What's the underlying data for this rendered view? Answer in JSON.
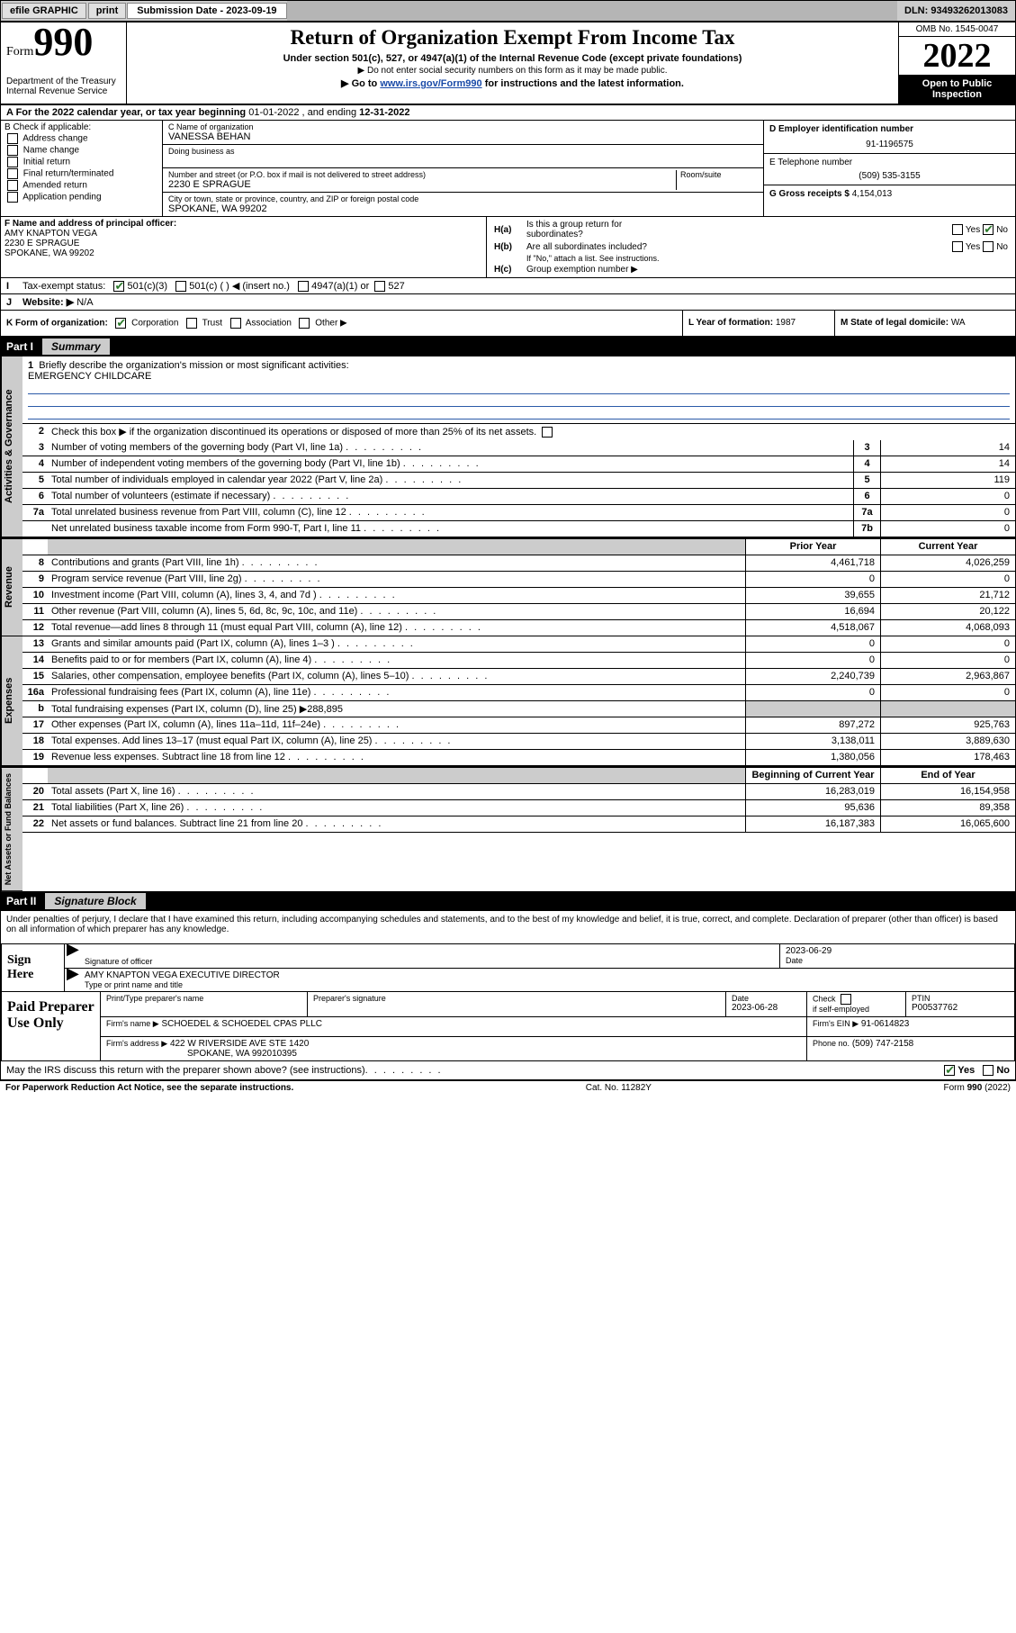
{
  "topbar": {
    "efile": "efile GRAPHIC",
    "print": "print",
    "submission_prefix": "Submission Date - ",
    "submission_date": "2023-09-19",
    "dln_prefix": "DLN: ",
    "dln": "93493262013083"
  },
  "header": {
    "form_word": "Form",
    "form_number": "990",
    "dept": "Department of the Treasury",
    "irs": "Internal Revenue Service",
    "title": "Return of Organization Exempt From Income Tax",
    "subtitle": "Under section 501(c), 527, or 4947(a)(1) of the Internal Revenue Code (except private foundations)",
    "note1": "▶ Do not enter social security numbers on this form as it may be made public.",
    "note2_prefix": "▶ Go to ",
    "note2_link": "www.irs.gov/Form990",
    "note2_suffix": " for instructions and the latest information.",
    "omb": "OMB No. 1545-0047",
    "year": "2022",
    "inspection1": "Open to Public",
    "inspection2": "Inspection"
  },
  "A": {
    "prefix": "A For the 2022 calendar year, or tax year beginning ",
    "begin": "01-01-2022",
    "mid": " , and ending ",
    "end": "12-31-2022"
  },
  "B": {
    "label": "B Check if applicable:",
    "opts": [
      "Address change",
      "Name change",
      "Initial return",
      "Final return/terminated",
      "Amended return",
      "Application pending"
    ]
  },
  "C": {
    "name_label": "C Name of organization",
    "name": "VANESSA BEHAN",
    "dba_label": "Doing business as",
    "dba": "",
    "addr_label": "Number and street (or P.O. box if mail is not delivered to street address)",
    "room_label": "Room/suite",
    "addr": "2230 E SPRAGUE",
    "city_label": "City or town, state or province, country, and ZIP or foreign postal code",
    "city": "SPOKANE, WA  99202"
  },
  "D": {
    "label": "D Employer identification number",
    "val": "91-1196575"
  },
  "E": {
    "label": "E Telephone number",
    "val": "(509) 535-3155"
  },
  "G": {
    "label": "G Gross receipts $",
    "val": "4,154,013"
  },
  "F": {
    "label": "F Name and address of principal officer:",
    "name": "AMY KNAPTON VEGA",
    "addr1": "2230 E SPRAGUE",
    "addr2": "SPOKANE, WA  99202"
  },
  "H": {
    "a": "Is this a group return for",
    "a2": "subordinates?",
    "b": "Are all subordinates included?",
    "note": "If \"No,\" attach a list. See instructions.",
    "c": "Group exemption number ▶",
    "yes": "Yes",
    "no": "No"
  },
  "I": {
    "label": "Tax-exempt status:",
    "o1": "501(c)(3)",
    "o2": "501(c) (   ) ◀ (insert no.)",
    "o3": "4947(a)(1) or",
    "o4": "527"
  },
  "J": {
    "label": "Website: ▶",
    "val": "N/A"
  },
  "K": {
    "label": "K Form of organization:",
    "o1": "Corporation",
    "o2": "Trust",
    "o3": "Association",
    "o4": "Other ▶"
  },
  "L": {
    "label": "L Year of formation:",
    "val": "1987"
  },
  "M": {
    "label": "M State of legal domicile:",
    "val": "WA"
  },
  "part1": {
    "label": "Part I",
    "title": "Summary"
  },
  "summary": {
    "q1": "Briefly describe the organization's mission or most significant activities:",
    "mission": "EMERGENCY CHILDCARE",
    "q2": "Check this box ▶        if the organization discontinued its operations or disposed of more than 25% of its net assets.",
    "rows_gov": [
      {
        "n": "3",
        "d": "Number of voting members of the governing body (Part VI, line 1a)",
        "box": "3",
        "v": "14"
      },
      {
        "n": "4",
        "d": "Number of independent voting members of the governing body (Part VI, line 1b)",
        "box": "4",
        "v": "14"
      },
      {
        "n": "5",
        "d": "Total number of individuals employed in calendar year 2022 (Part V, line 2a)",
        "box": "5",
        "v": "119"
      },
      {
        "n": "6",
        "d": "Total number of volunteers (estimate if necessary)",
        "box": "6",
        "v": "0"
      },
      {
        "n": "7a",
        "d": "Total unrelated business revenue from Part VIII, column (C), line 12",
        "box": "7a",
        "v": "0"
      },
      {
        "n": "",
        "d": "Net unrelated business taxable income from Form 990-T, Part I, line 11",
        "box": "7b",
        "v": "0"
      }
    ],
    "prior_label": "Prior Year",
    "current_label": "Current Year",
    "rows_rev": [
      {
        "n": "8",
        "d": "Contributions and grants (Part VIII, line 1h)",
        "p": "4,461,718",
        "c": "4,026,259"
      },
      {
        "n": "9",
        "d": "Program service revenue (Part VIII, line 2g)",
        "p": "0",
        "c": "0"
      },
      {
        "n": "10",
        "d": "Investment income (Part VIII, column (A), lines 3, 4, and 7d )",
        "p": "39,655",
        "c": "21,712"
      },
      {
        "n": "11",
        "d": "Other revenue (Part VIII, column (A), lines 5, 6d, 8c, 9c, 10c, and 11e)",
        "p": "16,694",
        "c": "20,122"
      },
      {
        "n": "12",
        "d": "Total revenue—add lines 8 through 11 (must equal Part VIII, column (A), line 12)",
        "p": "4,518,067",
        "c": "4,068,093"
      }
    ],
    "rows_exp": [
      {
        "n": "13",
        "d": "Grants and similar amounts paid (Part IX, column (A), lines 1–3 )",
        "p": "0",
        "c": "0"
      },
      {
        "n": "14",
        "d": "Benefits paid to or for members (Part IX, column (A), line 4)",
        "p": "0",
        "c": "0"
      },
      {
        "n": "15",
        "d": "Salaries, other compensation, employee benefits (Part IX, column (A), lines 5–10)",
        "p": "2,240,739",
        "c": "2,963,867"
      },
      {
        "n": "16a",
        "d": "Professional fundraising fees (Part IX, column (A), line 11e)",
        "p": "0",
        "c": "0"
      },
      {
        "n": "b",
        "d": "Total fundraising expenses (Part IX, column (D), line 25) ▶288,895",
        "p": "",
        "c": "",
        "gray": true
      },
      {
        "n": "17",
        "d": "Other expenses (Part IX, column (A), lines 11a–11d, 11f–24e)",
        "p": "897,272",
        "c": "925,763"
      },
      {
        "n": "18",
        "d": "Total expenses. Add lines 13–17 (must equal Part IX, column (A), line 25)",
        "p": "3,138,011",
        "c": "3,889,630"
      },
      {
        "n": "19",
        "d": "Revenue less expenses. Subtract line 18 from line 12",
        "p": "1,380,056",
        "c": "178,463"
      }
    ],
    "begin_label": "Beginning of Current Year",
    "end_label": "End of Year",
    "rows_net": [
      {
        "n": "20",
        "d": "Total assets (Part X, line 16)",
        "p": "16,283,019",
        "c": "16,154,958"
      },
      {
        "n": "21",
        "d": "Total liabilities (Part X, line 26)",
        "p": "95,636",
        "c": "89,358"
      },
      {
        "n": "22",
        "d": "Net assets or fund balances. Subtract line 21 from line 20",
        "p": "16,187,383",
        "c": "16,065,600"
      }
    ],
    "tab_gov": "Activities & Governance",
    "tab_rev": "Revenue",
    "tab_exp": "Expenses",
    "tab_net": "Net Assets or Fund Balances"
  },
  "part2": {
    "label": "Part II",
    "title": "Signature Block"
  },
  "sig": {
    "decl": "Under penalties of perjury, I declare that I have examined this return, including accompanying schedules and statements, and to the best of my knowledge and belief, it is true, correct, and complete. Declaration of preparer (other than officer) is based on all information of which preparer has any knowledge.",
    "sign_here": "Sign Here",
    "sig_officer": "Signature of officer",
    "date": "Date",
    "sig_date": "2023-06-29",
    "name_title": "AMY KNAPTON VEGA  EXECUTIVE DIRECTOR",
    "type_name": "Type or print name and title"
  },
  "paid": {
    "label": "Paid Preparer Use Only",
    "h1": "Print/Type preparer's name",
    "h2": "Preparer's signature",
    "h3": "Date",
    "h3v": "2023-06-28",
    "h4a": "Check",
    "h4b": "if self-employed",
    "h5": "PTIN",
    "h5v": "P00537762",
    "firm_name_l": "Firm's name    ▶",
    "firm_name": "SCHOEDEL & SCHOEDEL CPAS PLLC",
    "firm_ein_l": "Firm's EIN ▶",
    "firm_ein": "91-0614823",
    "firm_addr_l": "Firm's address ▶",
    "firm_addr1": "422 W RIVERSIDE AVE STE 1420",
    "firm_addr2": "SPOKANE, WA  992010395",
    "phone_l": "Phone no.",
    "phone": "(509) 747-2158"
  },
  "discuss": {
    "q": "May the IRS discuss this return with the preparer shown above? (see instructions)",
    "yes": "Yes",
    "no": "No"
  },
  "footer": {
    "left": "For Paperwork Reduction Act Notice, see the separate instructions.",
    "mid": "Cat. No. 11282Y",
    "right_a": "Form ",
    "right_b": "990",
    "right_c": " (2022)"
  },
  "colors": {
    "link": "#1a4ba8",
    "check_green": "#2b7a2b",
    "underline_blue": "#2b5aa8"
  }
}
